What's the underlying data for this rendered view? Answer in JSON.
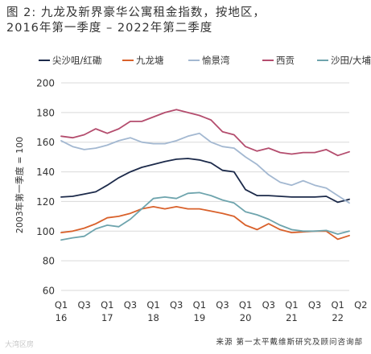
{
  "chart_data": {
    "type": "line",
    "title": "图 2: 九龙及新界豪华公寓租金指数，按地区，\n2016年第一季度 – 2022年第二季度",
    "ylabel": "2003年第一季度 = 100",
    "ylim": [
      60,
      200
    ],
    "yticks": [
      60,
      80,
      100,
      120,
      140,
      160,
      180,
      200
    ],
    "grid": true,
    "legend_position": "top",
    "x": [
      "2016Q1",
      "2016Q2",
      "2016Q3",
      "2016Q4",
      "2017Q1",
      "2017Q2",
      "2017Q3",
      "2017Q4",
      "2018Q1",
      "2018Q2",
      "2018Q3",
      "2018Q4",
      "2019Q1",
      "2019Q2",
      "2019Q3",
      "2019Q4",
      "2020Q1",
      "2020Q2",
      "2020Q3",
      "2020Q4",
      "2021Q1",
      "2021Q2",
      "2021Q3",
      "2021Q4",
      "2022Q1",
      "2022Q2"
    ],
    "x_tick_labels": [
      {
        "top": "Q1",
        "bottom": "16"
      },
      {
        "top": "Q3",
        "bottom": ""
      },
      {
        "top": "Q1",
        "bottom": "17"
      },
      {
        "top": "Q3",
        "bottom": ""
      },
      {
        "top": "Q1",
        "bottom": "18"
      },
      {
        "top": "Q3",
        "bottom": ""
      },
      {
        "top": "Q1",
        "bottom": "19"
      },
      {
        "top": "Q3",
        "bottom": ""
      },
      {
        "top": "Q1",
        "bottom": "20"
      },
      {
        "top": "Q3",
        "bottom": ""
      },
      {
        "top": "Q1",
        "bottom": "21"
      },
      {
        "top": "Q3",
        "bottom": ""
      },
      {
        "top": "Q1",
        "bottom": "22"
      },
      {
        "top": "Q2",
        "bottom": ""
      }
    ],
    "series": [
      {
        "name": "尖沙咀/红磡",
        "color": "#1c2a4a",
        "values": [
          123,
          123.5,
          125,
          126.5,
          131,
          136,
          140,
          143,
          145,
          147,
          148.5,
          149,
          148,
          146,
          141,
          140,
          128,
          124,
          124,
          123.5,
          123,
          123,
          123,
          123.5,
          119.5,
          121.5
        ]
      },
      {
        "name": "九龙塘",
        "color": "#d9612b",
        "values": [
          99,
          100,
          102,
          105,
          109,
          110,
          112,
          115,
          116.5,
          115,
          116.5,
          115,
          115,
          113.5,
          112,
          110,
          104,
          101,
          105,
          101,
          99,
          99.5,
          100,
          100,
          94.5,
          97
        ]
      },
      {
        "name": "愉景湾",
        "color": "#a3b8d1",
        "values": [
          161,
          157,
          155,
          156,
          158,
          161,
          163,
          160,
          159,
          159,
          161,
          164,
          166,
          160,
          157,
          156,
          150,
          145,
          138,
          133,
          131,
          134,
          131,
          129,
          124,
          119
        ]
      },
      {
        "name": "西贡",
        "color": "#b44d6e",
        "values": [
          164,
          163,
          165,
          169,
          166,
          169,
          174,
          174,
          177,
          180,
          182,
          180,
          178,
          175,
          167,
          165,
          157,
          154,
          156,
          153,
          152,
          153,
          153,
          155,
          151,
          153.5
        ]
      },
      {
        "name": "沙田/大埔",
        "color": "#6ea4ad",
        "values": [
          94,
          95.5,
          96.5,
          101.5,
          104,
          103,
          108,
          115,
          122,
          123,
          122,
          125.5,
          126,
          124,
          121,
          119,
          113,
          111,
          108,
          104,
          101,
          100,
          100,
          100.5,
          98,
          100
        ]
      }
    ]
  },
  "source": "来源 第一太平戴维斯研究及顾问咨询部",
  "watermark": "大湾区房"
}
